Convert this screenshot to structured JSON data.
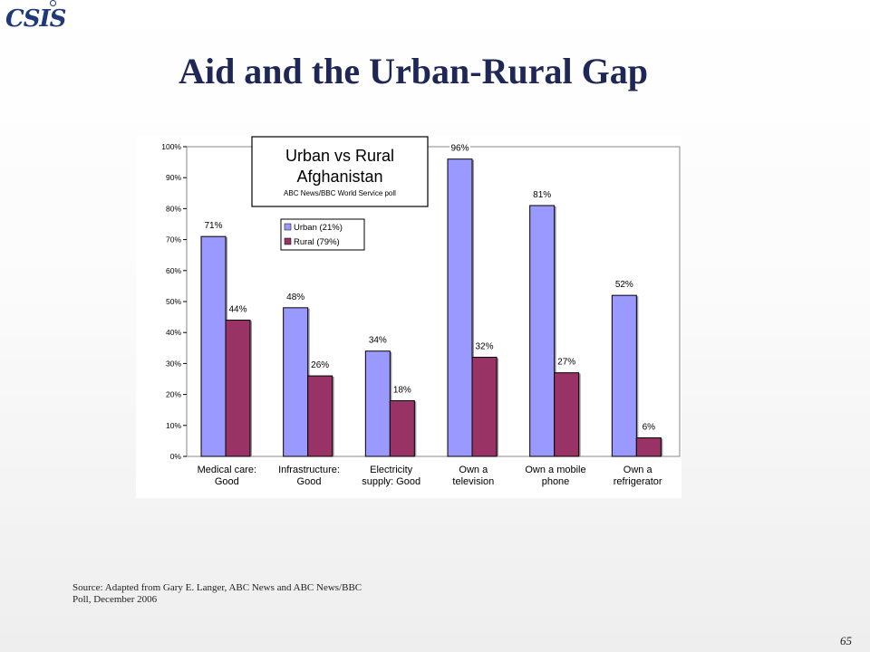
{
  "logo": {
    "text": "CSIS"
  },
  "title": "Aid and the Urban-Rural Gap",
  "chart_data": {
    "type": "bar",
    "title": "Urban vs Rural Afghanistan",
    "subtitle": "ABC News/BBC World Service poll",
    "categories": [
      [
        "Medical care:",
        "Good"
      ],
      [
        "Infrastructure:",
        "Good"
      ],
      [
        "Electricity",
        "supply: Good"
      ],
      [
        "Own a",
        "television"
      ],
      [
        "Own a mobile",
        "phone"
      ],
      [
        "Own a",
        "refrigerator"
      ]
    ],
    "series": [
      {
        "name": "Urban (21%)",
        "color": "#9999ff",
        "values": [
          71,
          48,
          34,
          96,
          81,
          52
        ],
        "labels": [
          "71%",
          "48%",
          "34%",
          "96%",
          "81%",
          "52%"
        ]
      },
      {
        "name": "Rural (79%)",
        "color": "#993366",
        "values": [
          44,
          26,
          18,
          32,
          27,
          6
        ],
        "labels": [
          "44%",
          "26%",
          "18%",
          "32%",
          "27%",
          "6%"
        ]
      }
    ],
    "ylim": [
      0,
      100
    ],
    "yticks": [
      "0%",
      "10%",
      "20%",
      "30%",
      "40%",
      "50%",
      "60%",
      "70%",
      "80%",
      "90%",
      "100%"
    ],
    "legend_position": "upper-left inside plot",
    "grid": false
  },
  "footer": {
    "source_line1": "Source: Adapted from Gary E. Langer, ABC News and ABC News/BBC",
    "source_line2": "Poll, December 2006",
    "page_number": "65"
  }
}
